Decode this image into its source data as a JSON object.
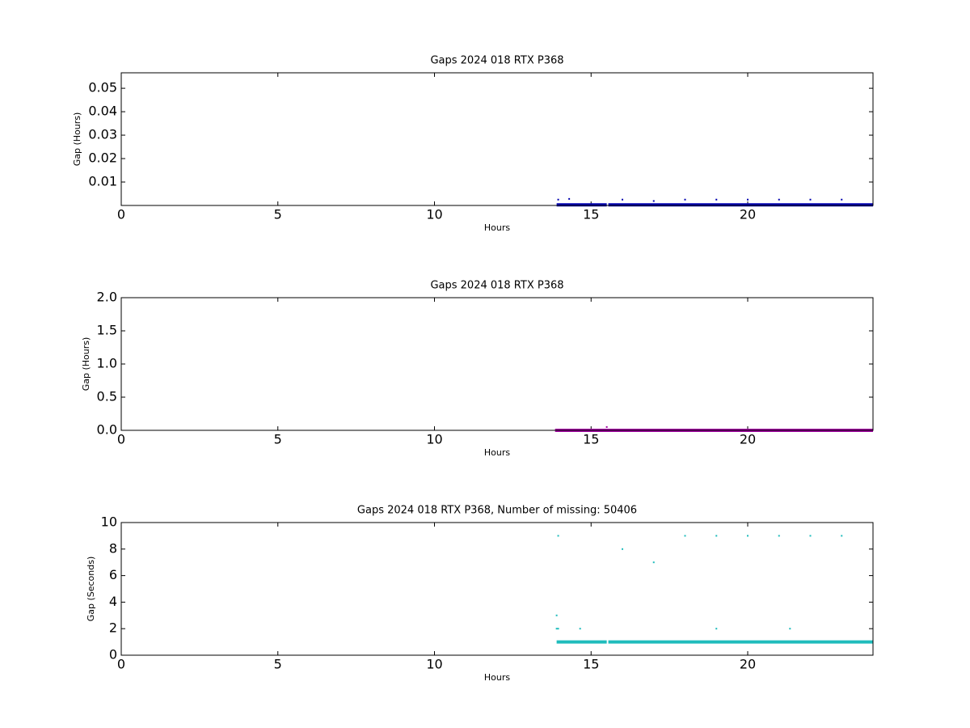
{
  "chart_data": [
    {
      "type": "scatter",
      "title": "Gaps 2024 018 RTX  P368",
      "xlabel": "Hours",
      "ylabel": "Gap (Hours)",
      "xlim": [
        0,
        24
      ],
      "xticks": [
        0,
        5,
        10,
        15,
        20
      ],
      "ylim": [
        0,
        0.0566
      ],
      "yticks": [
        0.01,
        0.02,
        0.03,
        0.04,
        0.05
      ],
      "series": [
        {
          "color": "#0000b0",
          "style": "band",
          "x": [
            13.9,
            15.5,
            15.52,
            15.55,
            24
          ],
          "values": [
            0.000278,
            0.000278,
            null,
            0.000278,
            0.000278
          ]
        },
        {
          "color": "#0000b0",
          "style": "dots",
          "x": [
            13.95,
            14.3,
            16,
            17,
            18,
            19,
            20,
            21,
            22,
            23
          ],
          "values": [
            0.0025,
            0.0028,
            0.0025,
            0.0019,
            0.0025,
            0.0025,
            0.0025,
            0.0025,
            0.0025,
            0.0025
          ]
        }
      ]
    },
    {
      "type": "scatter",
      "title": "Gaps 2024 018 RTX  P368",
      "xlabel": "Hours",
      "ylabel": "Gap (Hours)",
      "xlim": [
        0,
        24
      ],
      "xticks": [
        0,
        5,
        10,
        15,
        20
      ],
      "ylim": [
        0,
        2
      ],
      "yticks": [
        {
          "value": 0,
          "label": "0.0"
        },
        {
          "value": 0.5,
          "label": "0.5"
        },
        {
          "value": 1,
          "label": "1.0"
        },
        {
          "value": 1.5,
          "label": "1.5"
        },
        {
          "value": 2,
          "label": "2.0"
        }
      ],
      "series": [
        {
          "color": "#a000a0",
          "style": "band",
          "x": [
            13.85,
            24
          ],
          "values": [
            0.0003,
            0.0003
          ]
        },
        {
          "color": "#a000a0",
          "style": "dots",
          "x": [
            15.5
          ],
          "values": [
            0.05
          ]
        }
      ]
    },
    {
      "type": "scatter",
      "title": "Gaps 2024 018 RTX  P368, Number of missing: 50406",
      "xlabel": "Hours",
      "ylabel": "Gap (Seconds)",
      "xlim": [
        0,
        24
      ],
      "xticks": [
        0,
        5,
        10,
        15,
        20
      ],
      "ylim": [
        0,
        10
      ],
      "yticks": [
        0,
        2,
        4,
        6,
        8,
        10
      ],
      "series": [
        {
          "color": "#1fbcbc",
          "style": "band",
          "x": [
            13.9,
            15.5,
            15.52,
            15.55,
            24
          ],
          "values": [
            1,
            1,
            null,
            1,
            1
          ]
        },
        {
          "color": "#1fbcbc",
          "style": "dots",
          "x": [
            13.95,
            13.9,
            13.9,
            13.95,
            14.65,
            16,
            17,
            18,
            19,
            19,
            20,
            21,
            21.35,
            22,
            23
          ],
          "values": [
            9,
            3,
            2,
            2,
            2,
            8,
            7,
            9,
            9,
            2,
            9,
            9,
            2,
            9,
            9
          ]
        }
      ]
    }
  ]
}
